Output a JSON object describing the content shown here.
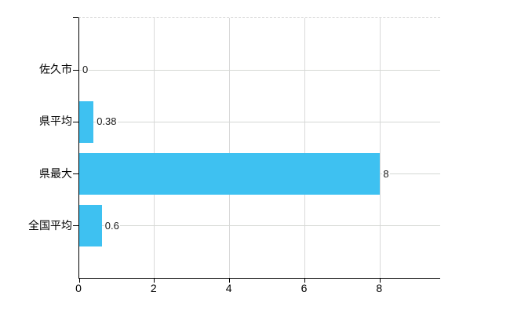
{
  "chart_data": {
    "type": "bar",
    "orientation": "horizontal",
    "title": "",
    "xlabel": "",
    "ylabel": "",
    "categories": [
      "佐久市",
      "県平均",
      "県最大",
      "全国平均"
    ],
    "values": [
      0,
      0.38,
      8,
      0.6
    ],
    "value_labels": [
      "0",
      "0.38",
      "8",
      "0.6"
    ],
    "xlim": [
      0,
      9.6
    ],
    "xticks": [
      0,
      2,
      4,
      6,
      8
    ],
    "xtick_labels": [
      "0",
      "2",
      "4",
      "6",
      "8"
    ],
    "grid": true,
    "legend": false,
    "colors": {
      "bar": "#3EC1F1",
      "vertical_grid": "#d9d9d9",
      "horizontal_grid": "#d5d8d4",
      "axis": "#000000",
      "text": "#000000",
      "value_text": "#1a1a1a",
      "background": "#ffffff"
    }
  }
}
